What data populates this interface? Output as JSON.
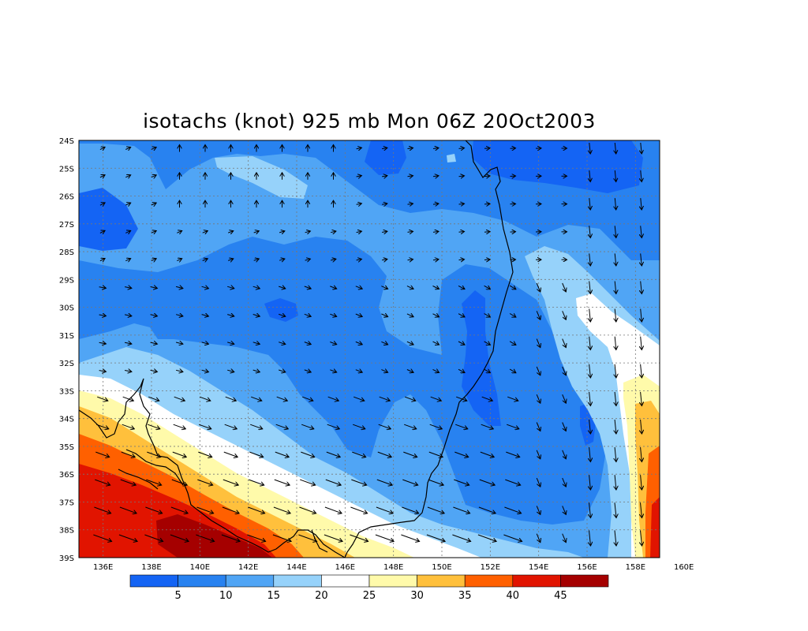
{
  "title": "isotachs (knot) 925 mb Mon 06Z 20Oct2003",
  "lat_labels": [
    "24S",
    "25S",
    "26S",
    "27S",
    "28S",
    "29S",
    "30S",
    "31S",
    "32S",
    "33S",
    "34S",
    "35S",
    "36S",
    "37S",
    "38S",
    "39S"
  ],
  "lon_labels": [
    "136E",
    "138E",
    "140E",
    "142E",
    "144E",
    "146E",
    "148E",
    "150E",
    "152E",
    "154E",
    "156E",
    "158E",
    "160E"
  ],
  "colorbar": {
    "colors": [
      "#1464f4",
      "#2882f0",
      "#50a5f5",
      "#96d2fa",
      "#ffffff",
      "#fffaaa",
      "#ffc03c",
      "#ff6000",
      "#e11400",
      "#a50000"
    ],
    "labels": [
      "5",
      "10",
      "15",
      "20",
      "25",
      "30",
      "35",
      "40",
      "45"
    ]
  },
  "colors": {
    "band_5": "#1464f4",
    "band_10": "#2882f0",
    "band_15": "#50a5f5",
    "band_20": "#96d2fa",
    "band_25": "#ffffff",
    "band_30": "#fffaaa",
    "band_35": "#ffc03c",
    "band_40": "#ff6000",
    "band_45": "#e11400",
    "band_50": "#a50000"
  }
}
